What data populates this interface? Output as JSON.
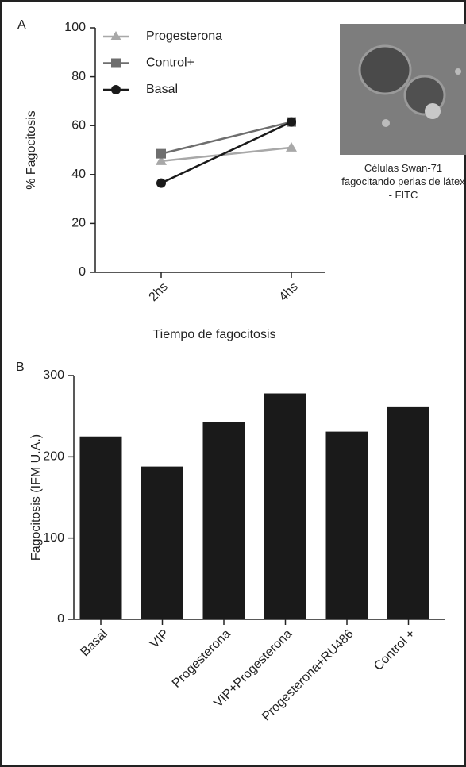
{
  "chart_data": [
    {
      "type": "line",
      "panel_label": "A",
      "ylabel": "% Fagocitosis",
      "xlabel": "Tiempo de fagocitosis",
      "categories": [
        "2hs",
        "4hs"
      ],
      "series": [
        {
          "name": "Progesterona",
          "color": "#a8a8a8",
          "marker": "triangle",
          "values": [
            45.5,
            51
          ]
        },
        {
          "name": "Control+",
          "color": "#6e6e6e",
          "marker": "square",
          "values": [
            48.5,
            61.5
          ]
        },
        {
          "name": "Basal",
          "color": "#1a1a1a",
          "marker": "circle",
          "values": [
            36.5,
            61.5
          ]
        }
      ],
      "ylim": [
        0,
        100
      ],
      "yticks": [
        0,
        20,
        40,
        60,
        80,
        100
      ],
      "legend": "upper left",
      "annotation": "Células Swan-71 fagocitando perlas de látex - FITC"
    },
    {
      "type": "bar",
      "panel_label": "B",
      "ylabel": "Fagocitosis (IFM U.A.)",
      "categories": [
        "Basal",
        "VIP",
        "Progesterona",
        "VIP+Progesterona",
        "Progesterona+RU486",
        "Control +"
      ],
      "values": [
        225,
        188,
        243,
        278,
        231,
        262
      ],
      "color": "#1a1a1a",
      "ylim": [
        0,
        300
      ],
      "yticks": [
        0,
        100,
        200,
        300
      ]
    }
  ]
}
